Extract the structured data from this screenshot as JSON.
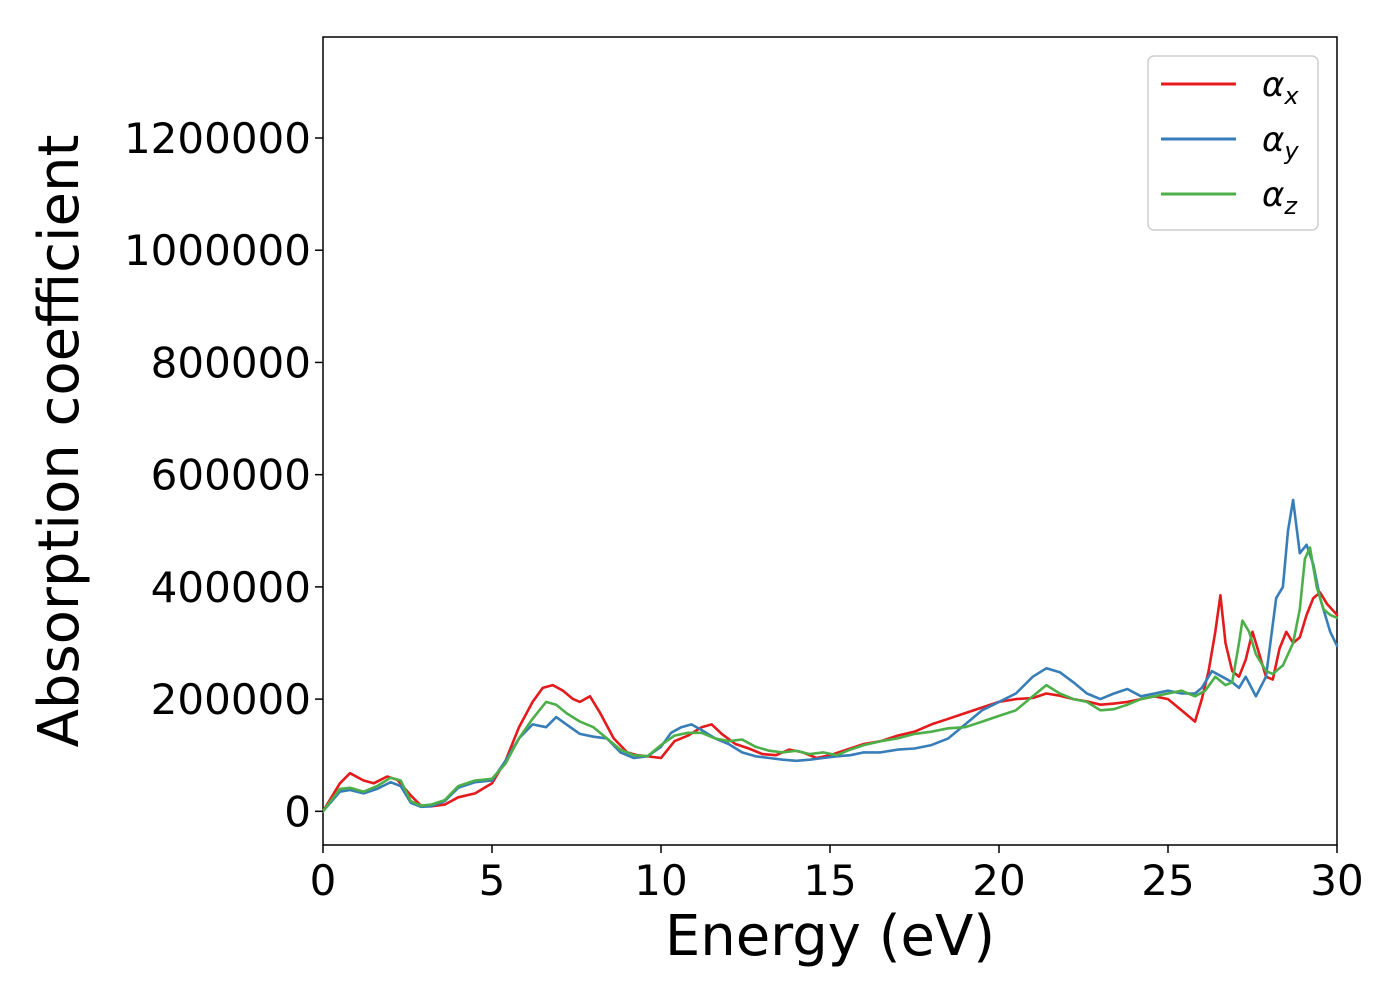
{
  "chart_data": {
    "type": "line",
    "title": "",
    "xlabel": "Energy (eV)",
    "ylabel": "Absorption coefficient",
    "xlim": [
      0,
      30
    ],
    "ylim": [
      -60000,
      1380000
    ],
    "xticks": [
      0,
      5,
      10,
      15,
      20,
      25,
      30
    ],
    "yticks": [
      0,
      200000,
      400000,
      600000,
      800000,
      1000000,
      1200000
    ],
    "grid": false,
    "legend_position": "top-right",
    "series": [
      {
        "name": "αx",
        "symbol": "α",
        "subscript": "x",
        "color": "#e41a1c",
        "x": [
          0,
          0.5,
          0.8,
          1.2,
          1.5,
          1.9,
          2.2,
          2.6,
          2.9,
          3.2,
          3.6,
          4.0,
          4.5,
          5.0,
          5.4,
          5.8,
          6.2,
          6.5,
          6.8,
          7.1,
          7.4,
          7.6,
          7.9,
          8.2,
          8.6,
          9.0,
          9.3,
          9.6,
          10.0,
          10.4,
          10.8,
          11.2,
          11.5,
          11.8,
          12.2,
          12.6,
          13.0,
          13.4,
          13.8,
          14.2,
          14.6,
          15.0,
          15.5,
          16.0,
          16.5,
          17.0,
          17.5,
          18.0,
          18.5,
          19.0,
          19.5,
          20.0,
          20.5,
          21.0,
          21.4,
          21.8,
          22.2,
          22.6,
          23.0,
          23.4,
          23.8,
          24.2,
          24.6,
          25.0,
          25.4,
          25.8,
          26.0,
          26.2,
          26.4,
          26.55,
          26.7,
          26.9,
          27.1,
          27.3,
          27.5,
          27.7,
          27.9,
          28.1,
          28.3,
          28.5,
          28.7,
          28.9,
          29.1,
          29.3,
          29.5,
          29.7,
          30.0
        ],
        "y": [
          0,
          50000,
          68000,
          55000,
          50000,
          62000,
          56000,
          28000,
          10000,
          9000,
          12000,
          25000,
          32000,
          50000,
          90000,
          150000,
          195000,
          220000,
          225000,
          215000,
          200000,
          195000,
          205000,
          175000,
          130000,
          105000,
          100000,
          98000,
          95000,
          125000,
          135000,
          150000,
          155000,
          138000,
          120000,
          112000,
          102000,
          100000,
          110000,
          105000,
          95000,
          100000,
          110000,
          120000,
          125000,
          135000,
          142000,
          155000,
          165000,
          175000,
          185000,
          195000,
          200000,
          202000,
          210000,
          206000,
          200000,
          196000,
          190000,
          192000,
          195000,
          200000,
          205000,
          200000,
          180000,
          160000,
          200000,
          250000,
          320000,
          385000,
          300000,
          250000,
          240000,
          270000,
          320000,
          280000,
          240000,
          235000,
          290000,
          320000,
          300000,
          310000,
          350000,
          380000,
          390000,
          370000,
          350000
        ]
      },
      {
        "name": "αy",
        "symbol": "α",
        "subscript": "y",
        "color": "#377eb8",
        "x": [
          0,
          0.5,
          0.8,
          1.2,
          1.6,
          2.0,
          2.3,
          2.6,
          2.9,
          3.2,
          3.6,
          4.0,
          4.5,
          5.0,
          5.4,
          5.8,
          6.2,
          6.6,
          6.9,
          7.2,
          7.6,
          8.0,
          8.4,
          8.8,
          9.2,
          9.6,
          10.0,
          10.3,
          10.6,
          10.9,
          11.2,
          11.6,
          12.0,
          12.4,
          12.8,
          13.2,
          13.6,
          14.0,
          14.4,
          14.8,
          15.2,
          15.6,
          16.0,
          16.5,
          17.0,
          17.5,
          18.0,
          18.5,
          19.0,
          19.5,
          20.0,
          20.5,
          21.0,
          21.4,
          21.8,
          22.2,
          22.6,
          23.0,
          23.4,
          23.8,
          24.2,
          24.6,
          25.0,
          25.4,
          25.8,
          26.0,
          26.3,
          26.6,
          26.9,
          27.1,
          27.3,
          27.6,
          27.9,
          28.2,
          28.4,
          28.55,
          28.7,
          28.9,
          29.1,
          29.3,
          29.5,
          29.8,
          30.0
        ],
        "y": [
          0,
          35000,
          38000,
          32000,
          40000,
          52000,
          45000,
          15000,
          8000,
          9000,
          18000,
          42000,
          52000,
          55000,
          90000,
          130000,
          155000,
          150000,
          168000,
          155000,
          138000,
          133000,
          130000,
          105000,
          95000,
          98000,
          115000,
          140000,
          150000,
          155000,
          145000,
          130000,
          120000,
          105000,
          98000,
          95000,
          92000,
          90000,
          92000,
          95000,
          98000,
          100000,
          105000,
          105000,
          110000,
          112000,
          118000,
          130000,
          155000,
          180000,
          195000,
          210000,
          240000,
          255000,
          248000,
          230000,
          210000,
          200000,
          210000,
          218000,
          205000,
          210000,
          215000,
          210000,
          210000,
          220000,
          250000,
          240000,
          230000,
          220000,
          240000,
          205000,
          240000,
          380000,
          400000,
          500000,
          555000,
          460000,
          475000,
          440000,
          380000,
          320000,
          295000
        ]
      },
      {
        "name": "αz",
        "symbol": "α",
        "subscript": "z",
        "color": "#4daf4a",
        "x": [
          0,
          0.5,
          0.8,
          1.2,
          1.6,
          2.0,
          2.3,
          2.6,
          2.9,
          3.2,
          3.6,
          4.0,
          4.5,
          5.0,
          5.4,
          5.8,
          6.2,
          6.6,
          6.9,
          7.2,
          7.6,
          8.0,
          8.4,
          8.8,
          9.2,
          9.6,
          10.0,
          10.4,
          10.8,
          11.2,
          11.6,
          12.0,
          12.4,
          12.8,
          13.2,
          13.6,
          14.0,
          14.4,
          14.8,
          15.2,
          15.6,
          16.0,
          16.5,
          17.0,
          17.5,
          18.0,
          18.5,
          19.0,
          19.5,
          20.0,
          20.5,
          21.0,
          21.4,
          21.8,
          22.2,
          22.6,
          23.0,
          23.4,
          23.8,
          24.2,
          24.6,
          25.0,
          25.4,
          25.8,
          26.1,
          26.4,
          26.7,
          26.9,
          27.1,
          27.2,
          27.4,
          27.6,
          27.9,
          28.1,
          28.4,
          28.7,
          28.9,
          29.05,
          29.2,
          29.4,
          29.6,
          29.8,
          30.0
        ],
        "y": [
          0,
          40000,
          42000,
          35000,
          45000,
          60000,
          55000,
          18000,
          10000,
          12000,
          20000,
          45000,
          55000,
          58000,
          85000,
          130000,
          165000,
          195000,
          190000,
          175000,
          160000,
          150000,
          130000,
          110000,
          100000,
          98000,
          118000,
          135000,
          140000,
          140000,
          130000,
          125000,
          128000,
          115000,
          108000,
          105000,
          108000,
          102000,
          105000,
          100000,
          110000,
          118000,
          125000,
          130000,
          138000,
          142000,
          148000,
          150000,
          160000,
          170000,
          180000,
          205000,
          225000,
          210000,
          200000,
          195000,
          180000,
          182000,
          190000,
          200000,
          205000,
          210000,
          215000,
          205000,
          215000,
          240000,
          225000,
          230000,
          300000,
          340000,
          320000,
          280000,
          250000,
          245000,
          260000,
          300000,
          360000,
          450000,
          470000,
          400000,
          360000,
          350000,
          345000
        ]
      }
    ]
  }
}
